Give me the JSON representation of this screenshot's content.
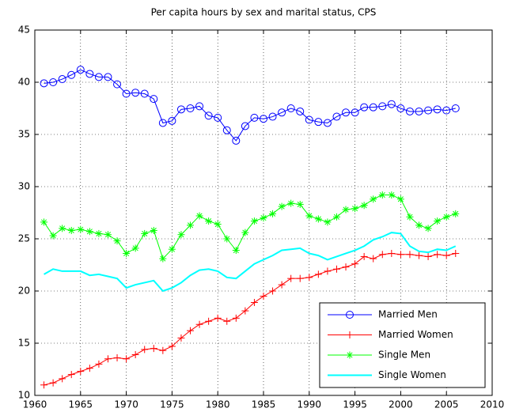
{
  "chart_data": {
    "type": "line",
    "title": "Per capita hours by sex and marital status, CPS",
    "x": [
      1961,
      1962,
      1963,
      1964,
      1965,
      1966,
      1967,
      1968,
      1969,
      1970,
      1971,
      1972,
      1973,
      1974,
      1975,
      1976,
      1977,
      1978,
      1979,
      1980,
      1981,
      1982,
      1983,
      1984,
      1985,
      1986,
      1987,
      1988,
      1989,
      1990,
      1991,
      1992,
      1993,
      1994,
      1995,
      1996,
      1997,
      1998,
      1999,
      2000,
      2001,
      2002,
      2003,
      2004,
      2005,
      2006
    ],
    "series": [
      {
        "name": "Married Men",
        "color": "#0000ff",
        "marker": "circle",
        "values": [
          39.9,
          40.0,
          40.3,
          40.7,
          41.2,
          40.8,
          40.5,
          40.5,
          39.8,
          38.9,
          39.0,
          38.9,
          38.4,
          36.1,
          36.3,
          37.4,
          37.5,
          37.7,
          36.8,
          36.6,
          35.4,
          34.4,
          35.8,
          36.6,
          36.5,
          36.7,
          37.1,
          37.5,
          37.2,
          36.4,
          36.2,
          36.1,
          36.7,
          37.1,
          37.1,
          37.6,
          37.6,
          37.7,
          37.9,
          37.5,
          37.2,
          37.2,
          37.3,
          37.4,
          37.3,
          37.5
        ]
      },
      {
        "name": "Married Women",
        "color": "#ff0000",
        "marker": "plus",
        "values": [
          11.0,
          11.2,
          11.6,
          12.0,
          12.3,
          12.6,
          13.0,
          13.5,
          13.6,
          13.5,
          13.9,
          14.4,
          14.5,
          14.3,
          14.7,
          15.5,
          16.2,
          16.8,
          17.1,
          17.4,
          17.1,
          17.4,
          18.1,
          18.9,
          19.5,
          20.0,
          20.6,
          21.2,
          21.2,
          21.3,
          21.6,
          21.9,
          22.1,
          22.3,
          22.6,
          23.3,
          23.1,
          23.5,
          23.6,
          23.5,
          23.5,
          23.4,
          23.3,
          23.5,
          23.4,
          23.6
        ]
      },
      {
        "name": "Single Men",
        "color": "#00ff00",
        "marker": "star",
        "values": [
          26.6,
          25.3,
          26.0,
          25.8,
          25.9,
          25.7,
          25.5,
          25.4,
          24.8,
          23.6,
          24.1,
          25.5,
          25.8,
          23.1,
          24.0,
          25.4,
          26.3,
          27.2,
          26.7,
          26.4,
          25.0,
          23.9,
          25.6,
          26.7,
          27.0,
          27.4,
          28.1,
          28.4,
          28.3,
          27.2,
          26.9,
          26.6,
          27.1,
          27.8,
          27.9,
          28.2,
          28.8,
          29.2,
          29.2,
          28.8,
          27.1,
          26.3,
          26.0,
          26.7,
          27.1,
          27.4
        ]
      },
      {
        "name": "Single Women",
        "color": "#00ffff",
        "marker": "none",
        "values": [
          21.6,
          22.1,
          21.9,
          21.9,
          21.9,
          21.5,
          21.6,
          21.4,
          21.2,
          20.3,
          20.6,
          20.8,
          21.0,
          20.0,
          20.3,
          20.8,
          21.5,
          22.0,
          22.1,
          21.9,
          21.3,
          21.2,
          21.9,
          22.6,
          23.0,
          23.4,
          23.9,
          24.0,
          24.1,
          23.6,
          23.4,
          23.0,
          23.3,
          23.6,
          23.9,
          24.3,
          24.9,
          25.2,
          25.6,
          25.5,
          24.3,
          23.8,
          23.7,
          24.0,
          23.9,
          24.3
        ]
      }
    ],
    "xlim": [
      1960,
      2010
    ],
    "xticks": [
      1960,
      1965,
      1970,
      1975,
      1980,
      1985,
      1990,
      1995,
      2000,
      2005,
      2010
    ],
    "ylim": [
      10,
      45
    ],
    "yticks": [
      10,
      15,
      20,
      25,
      30,
      35,
      40,
      45
    ],
    "grid": true,
    "legend": "southeast"
  }
}
